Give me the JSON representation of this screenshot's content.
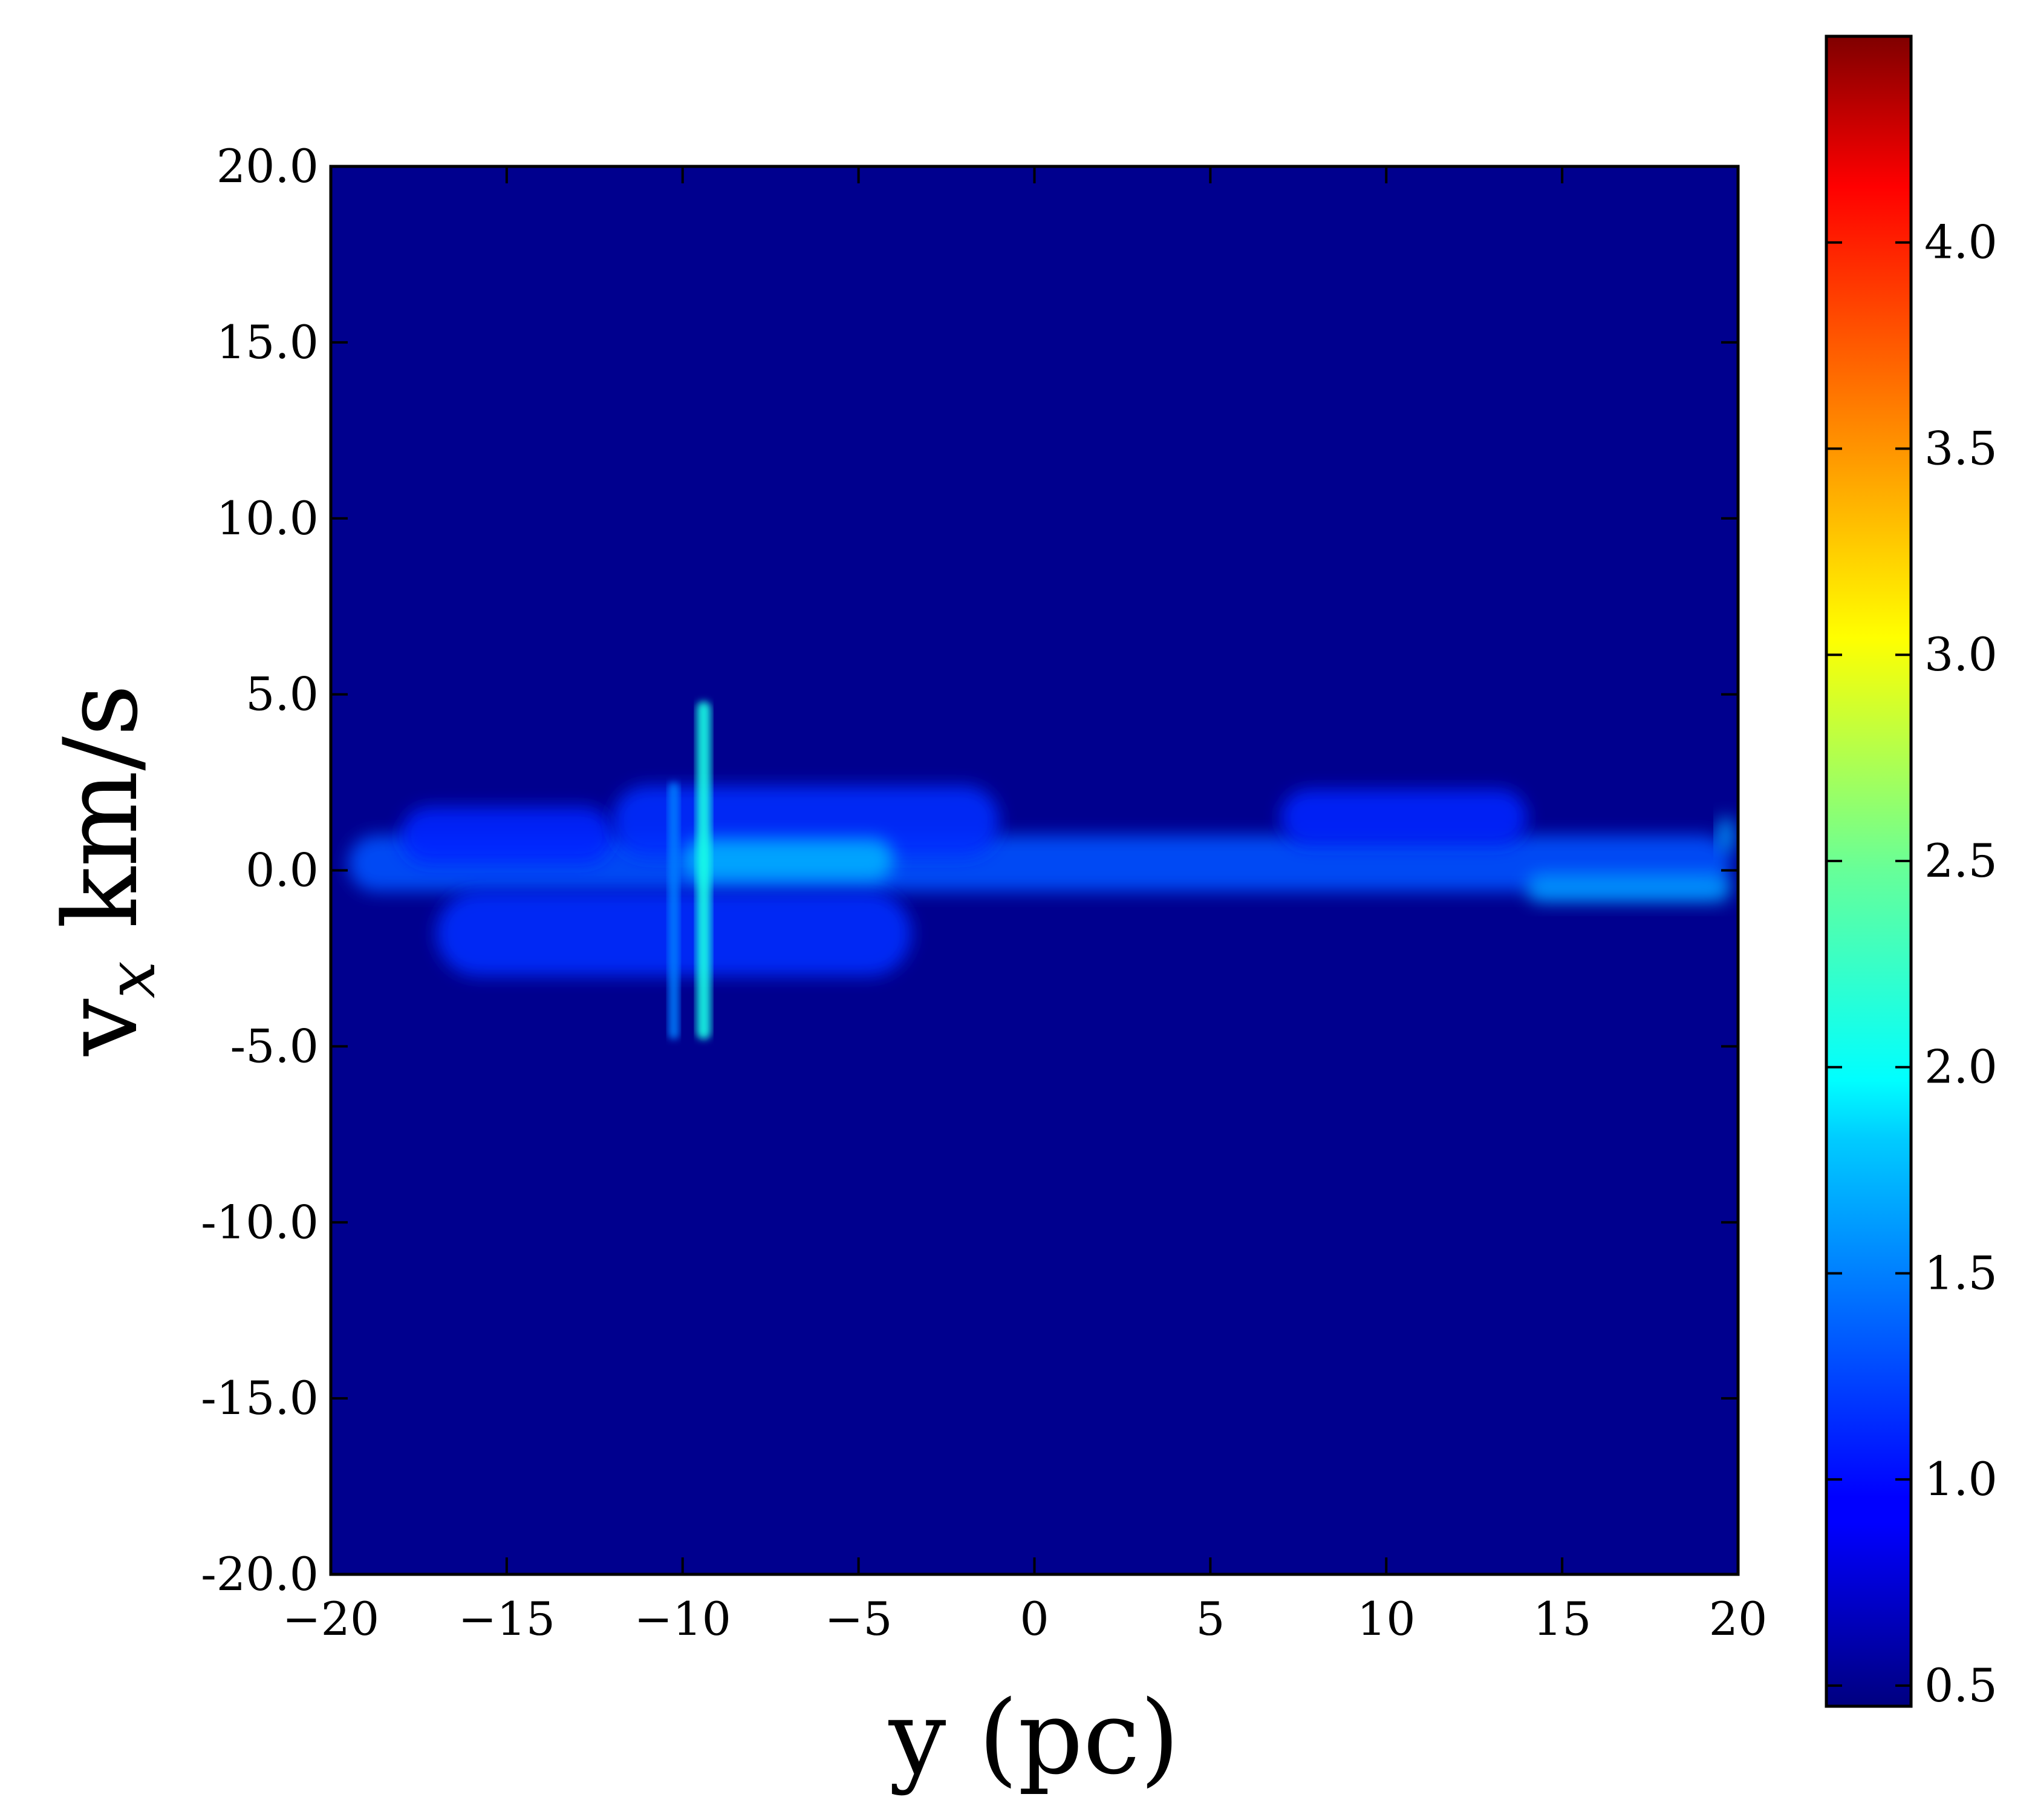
{
  "chart_data": {
    "type": "heatmap",
    "title": "",
    "xlabel": "y (pc)",
    "ylabel": "v",
    "ylabel_subscript": "x",
    "ylabel_units": " km/s",
    "xlim": [
      -20,
      20
    ],
    "ylim": [
      -20,
      20
    ],
    "x_ticks": [
      -20,
      -15,
      -10,
      -5,
      0,
      5,
      10,
      15,
      20
    ],
    "x_tick_labels": [
      "−20",
      "−15",
      "−10",
      "−5",
      "0",
      "5",
      "10",
      "15",
      "20"
    ],
    "y_ticks": [
      20,
      15,
      10,
      5,
      0,
      -5,
      -10,
      -15,
      -20
    ],
    "y_tick_labels": [
      "20.0",
      "15.0",
      "10.0",
      "5.0",
      "0.0",
      "-5.0",
      "-10.0",
      "-15.0",
      "-20.0"
    ],
    "grid": false,
    "background_value": 0.5,
    "colormap": "jet",
    "colorbar": {
      "vmin": 0.45,
      "vmax": 4.5,
      "ticks": [
        0.5,
        1.0,
        1.5,
        2.0,
        2.5,
        3.0,
        3.5,
        4.0
      ],
      "tick_labels": [
        "0.5",
        "1.0",
        "1.5",
        "2.0",
        "2.5",
        "3.0",
        "3.5",
        "4.0"
      ]
    },
    "features": [
      {
        "name": "main-band",
        "y_start": -19.5,
        "y_end": 19.8,
        "vx_center": 0.2,
        "vx_halfwidth": 0.8,
        "value": 1.3
      },
      {
        "name": "left-wing-upper",
        "y_start": -18.0,
        "y_end": -12.0,
        "vx_center": 1.0,
        "vx_halfwidth": 0.8,
        "value": 1.1
      },
      {
        "name": "lower-lobe",
        "y_start": -17.0,
        "y_end": -3.5,
        "vx_center": -1.8,
        "vx_halfwidth": 1.2,
        "value": 1.15
      },
      {
        "name": "upper-lobe-left",
        "y_start": -12.0,
        "y_end": -1.0,
        "vx_center": 1.4,
        "vx_halfwidth": 1.0,
        "value": 1.15
      },
      {
        "name": "upper-lobe-right",
        "y_start": 7.0,
        "y_end": 14.0,
        "vx_center": 1.5,
        "vx_halfwidth": 0.8,
        "value": 1.1
      },
      {
        "name": "bright-core",
        "y_start": -10.0,
        "y_end": -4.0,
        "vx_center": 0.3,
        "vx_halfwidth": 0.6,
        "value": 1.7
      },
      {
        "name": "right-end-tail",
        "y_start": 14.0,
        "y_end": 19.8,
        "vx_center": -0.5,
        "vx_halfwidth": 0.4,
        "value": 1.6
      },
      {
        "name": "right-edge-spur",
        "y_start": 19.4,
        "y_end": 19.9,
        "vx_center": 1.0,
        "vx_halfwidth": 0.5,
        "value": 1.6
      },
      {
        "name": "vertical-streak-main",
        "y_start": -9.6,
        "y_end": -9.2,
        "vx_min": -4.8,
        "vx_max": 4.8,
        "value": 2.1
      },
      {
        "name": "vertical-streak-secondary",
        "y_start": -10.4,
        "y_end": -10.1,
        "vx_min": -4.8,
        "vx_max": 2.5,
        "value": 1.5
      }
    ]
  }
}
